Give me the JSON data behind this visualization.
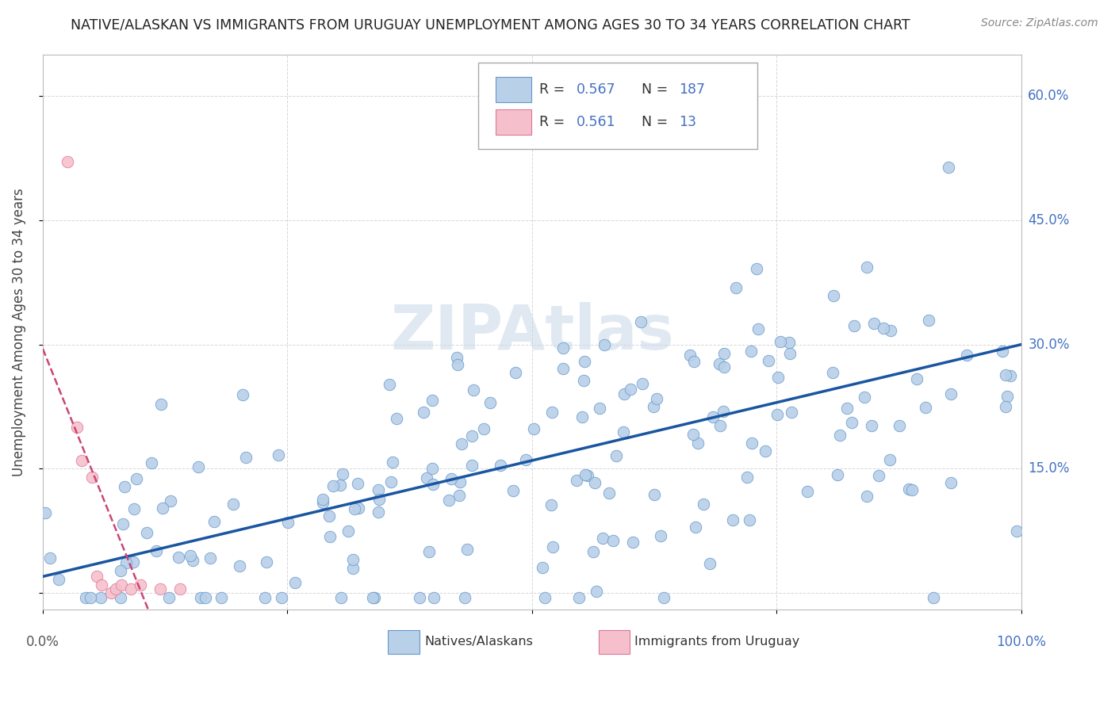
{
  "title": "NATIVE/ALASKAN VS IMMIGRANTS FROM URUGUAY UNEMPLOYMENT AMONG AGES 30 TO 34 YEARS CORRELATION CHART",
  "source": "Source: ZipAtlas.com",
  "ylabel": "Unemployment Among Ages 30 to 34 years",
  "xlim": [
    0,
    1.0
  ],
  "ylim": [
    -0.02,
    0.65
  ],
  "y_ticks": [
    0.0,
    0.15,
    0.3,
    0.45,
    0.6
  ],
  "y_tick_labels": [
    "",
    "15.0%",
    "30.0%",
    "45.0%",
    "60.0%"
  ],
  "blue_R": 0.567,
  "blue_N": 187,
  "pink_R": 0.561,
  "pink_N": 13,
  "blue_color": "#b8d0e8",
  "blue_edge_color": "#6699cc",
  "pink_color": "#f5c0cc",
  "pink_edge_color": "#dd7799",
  "blue_line_color": "#1a56a0",
  "pink_line_color": "#cc4477",
  "background_color": "#ffffff",
  "grid_color": "#cccccc",
  "title_color": "#222222",
  "axis_label_color": "#444444",
  "tick_label_color_right": "#4472c4",
  "watermark": "ZIPAtlas",
  "legend_R_N_color": "#4472c4"
}
